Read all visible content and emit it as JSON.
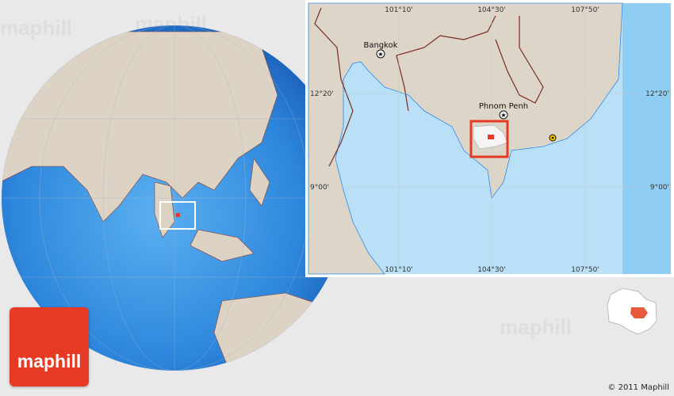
{
  "watermark": "maphill",
  "logo": {
    "text": "maphill",
    "color": "#e63a24"
  },
  "inset": {
    "longitude_labels": [
      "101°10'",
      "104°30'",
      "107°50'"
    ],
    "latitude_labels": [
      "12°20'",
      "9°00'"
    ],
    "cities": [
      {
        "name": "Bangkok",
        "symbol": "capital-star"
      },
      {
        "name": "Phnom Penh",
        "symbol": "capital-star"
      }
    ],
    "highlight_color": "#e63a24"
  },
  "copyright": "© 2011 Maphill"
}
